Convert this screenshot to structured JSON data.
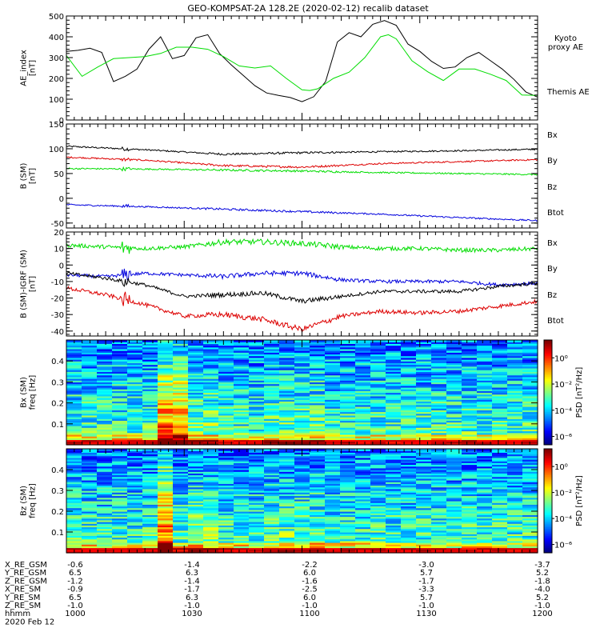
{
  "title": "GEO-KOMPSAT-2A 128.2E (2020-02-12) recalib dataset",
  "colors": {
    "black": "#000000",
    "red": "#dd0000",
    "green": "#00dd00",
    "blue": "#0000dd",
    "legend_blue": "#0000cc",
    "legend_green": "#00cc00",
    "legend_red": "#cc0000"
  },
  "chart_data": [
    {
      "id": "ae",
      "type": "line",
      "ylabel": "AE_index\n[nT]",
      "ylim": [
        0,
        500
      ],
      "yticks": [
        0,
        100,
        200,
        300,
        400,
        500
      ],
      "x_time_range": [
        "10:00",
        "12:00"
      ],
      "legend": [
        {
          "label": "Kyoto\nproxy AE",
          "color": "green"
        },
        {
          "label": "Themis AE",
          "color": "black"
        }
      ],
      "series": [
        {
          "name": "Themis AE",
          "color": "black",
          "x": [
            0,
            3,
            6,
            9,
            12,
            15,
            18,
            21,
            24,
            27,
            30,
            33,
            36,
            39,
            42,
            45,
            48,
            51,
            54,
            57,
            60,
            63,
            66,
            69,
            72,
            75,
            78,
            81,
            84,
            87,
            90,
            93,
            96,
            99,
            102,
            105,
            108,
            111,
            114,
            117,
            120
          ],
          "y": [
            330,
            335,
            345,
            325,
            185,
            210,
            245,
            340,
            400,
            295,
            310,
            395,
            410,
            320,
            265,
            215,
            165,
            130,
            118,
            108,
            88,
            112,
            185,
            375,
            420,
            400,
            460,
            478,
            455,
            365,
            330,
            282,
            248,
            255,
            300,
            325,
            285,
            245,
            195,
            135,
            110
          ]
        },
        {
          "name": "Kyoto proxy AE",
          "color": "green",
          "x": [
            0,
            4,
            8,
            12,
            16,
            20,
            24,
            28,
            32,
            36,
            40,
            44,
            48,
            52,
            56,
            60,
            62,
            64,
            68,
            72,
            76,
            80,
            82,
            84,
            88,
            92,
            96,
            100,
            104,
            108,
            112,
            116,
            120
          ],
          "y": [
            310,
            210,
            255,
            295,
            300,
            305,
            320,
            350,
            350,
            340,
            305,
            260,
            250,
            260,
            200,
            145,
            142,
            150,
            200,
            230,
            300,
            400,
            410,
            390,
            285,
            232,
            190,
            245,
            245,
            220,
            190,
            120,
            118
          ]
        }
      ]
    },
    {
      "id": "b_sm",
      "type": "line",
      "ylabel": "B (SM)\n[nT]",
      "ylim": [
        -60,
        150
      ],
      "yticks": [
        -50,
        0,
        50,
        100,
        150
      ],
      "legend": [
        {
          "label": "Bx",
          "color": "legend_blue"
        },
        {
          "label": "By",
          "color": "legend_green"
        },
        {
          "label": "Bz",
          "color": "legend_red"
        },
        {
          "label": "Btot",
          "color": "black"
        }
      ],
      "series": [
        {
          "name": "Btot",
          "color": "black",
          "x": [
            0,
            20,
            40,
            60,
            80,
            100,
            120
          ],
          "y": [
            105,
            98,
            89,
            92,
            94,
            96,
            99
          ],
          "noise": 1.5
        },
        {
          "name": "Bz",
          "color": "red",
          "x": [
            0,
            20,
            40,
            60,
            80,
            100,
            120
          ],
          "y": [
            83,
            77,
            66,
            63,
            70,
            74,
            78
          ],
          "noise": 1.5
        },
        {
          "name": "By",
          "color": "green",
          "x": [
            0,
            20,
            40,
            60,
            80,
            100,
            120
          ],
          "y": [
            60,
            59,
            57,
            55,
            52,
            50,
            48
          ],
          "noise": 1.5
        },
        {
          "name": "Bx",
          "color": "blue",
          "x": [
            0,
            20,
            40,
            60,
            80,
            100,
            120
          ],
          "y": [
            -13,
            -17,
            -22,
            -27,
            -32,
            -39,
            -45
          ],
          "noise": 1.5
        }
      ]
    },
    {
      "id": "db",
      "type": "line",
      "ylabel": "B (SM)-IGRF (SM)\n[nT]",
      "ylim": [
        -43,
        20
      ],
      "yticks": [
        -40,
        -30,
        -20,
        -10,
        0,
        10,
        20
      ],
      "legend": [
        {
          "label": "Bx",
          "color": "legend_blue"
        },
        {
          "label": "By",
          "color": "legend_green"
        },
        {
          "label": "Bz",
          "color": "legend_red"
        },
        {
          "label": "Btot",
          "color": "black"
        }
      ],
      "series": [
        {
          "name": "By",
          "color": "green",
          "x": [
            0,
            10,
            20,
            30,
            40,
            50,
            60,
            70,
            80,
            90,
            100,
            110,
            120
          ],
          "y": [
            12,
            11,
            10,
            11,
            14,
            14,
            13,
            11,
            10,
            10,
            9,
            9,
            10
          ],
          "noise": 1.2
        },
        {
          "name": "Bx",
          "color": "blue",
          "x": [
            0,
            10,
            20,
            30,
            40,
            50,
            60,
            70,
            80,
            90,
            100,
            110,
            120
          ],
          "y": [
            -6,
            -7,
            -5,
            -6,
            -7,
            -5,
            -5,
            -9,
            -10,
            -10,
            -10,
            -12,
            -11
          ],
          "noise": 1.0
        },
        {
          "name": "Btot",
          "color": "black",
          "x": [
            0,
            10,
            20,
            30,
            40,
            50,
            60,
            70,
            80,
            90,
            100,
            110,
            120
          ],
          "y": [
            -5,
            -8,
            -12,
            -19,
            -18,
            -17,
            -22,
            -19,
            -16,
            -16,
            -16,
            -13,
            -11
          ],
          "noise": 1.0
        },
        {
          "name": "Bz",
          "color": "red",
          "x": [
            0,
            10,
            20,
            30,
            40,
            50,
            60,
            70,
            80,
            90,
            100,
            110,
            120
          ],
          "y": [
            -14,
            -18,
            -24,
            -31,
            -30,
            -33,
            -39,
            -31,
            -28,
            -29,
            -28,
            -25,
            -22
          ],
          "noise": 1.2
        }
      ]
    },
    {
      "id": "bx_psd",
      "type": "heatmap",
      "ylabel": "Bx (SM)\nfreq [Hz]",
      "ylim": [
        0,
        0.5
      ],
      "yticks": [
        0.1,
        0.2,
        0.3,
        0.4
      ],
      "colorbar_label": "PSD [nT²/Hz]",
      "colorbar_ticks": [
        "10⁰",
        "10⁻²",
        "10⁻⁴",
        "10⁻⁶"
      ],
      "n_time_bins": 31,
      "n_freq_bins": 60,
      "enhanced_time_bins": [
        6,
        7
      ]
    },
    {
      "id": "bz_psd",
      "type": "heatmap",
      "ylabel": "Bz (SM)\nfreq [Hz]",
      "ylim": [
        0,
        0.5
      ],
      "yticks": [
        0.1,
        0.2,
        0.3,
        0.4
      ],
      "colorbar_label": "PSD [nT²/Hz]",
      "colorbar_ticks": [
        "10⁰",
        "10⁻²",
        "10⁻⁴",
        "10⁻⁶"
      ],
      "n_time_bins": 31,
      "n_freq_bins": 60,
      "enhanced_time_bins": [
        6
      ]
    }
  ],
  "ephemeris": {
    "labels": [
      "X_RE_GSM",
      "Y_RE_GSM",
      "Z_RE_GSM",
      "X_RE_SM",
      "Y_RE_SM",
      "Z_RE_SM",
      "hhmm"
    ],
    "columns": [
      [
        "-0.6",
        "6.5",
        "-1.2",
        "-0.9",
        "6.5",
        "-1.0",
        "1000"
      ],
      [
        "-1.4",
        "6.3",
        "-1.4",
        "-1.7",
        "6.3",
        "-1.0",
        "1030"
      ],
      [
        "-2.2",
        "6.0",
        "-1.6",
        "-2.5",
        "6.0",
        "-1.0",
        "1100"
      ],
      [
        "-3.0",
        "5.7",
        "-1.7",
        "-3.3",
        "5.7",
        "-1.0",
        "1130"
      ],
      [
        "-3.7",
        "5.2",
        "-1.8",
        "-4.0",
        "5.2",
        "-1.0",
        "1200"
      ]
    ],
    "date": "2020 Feb 12"
  }
}
